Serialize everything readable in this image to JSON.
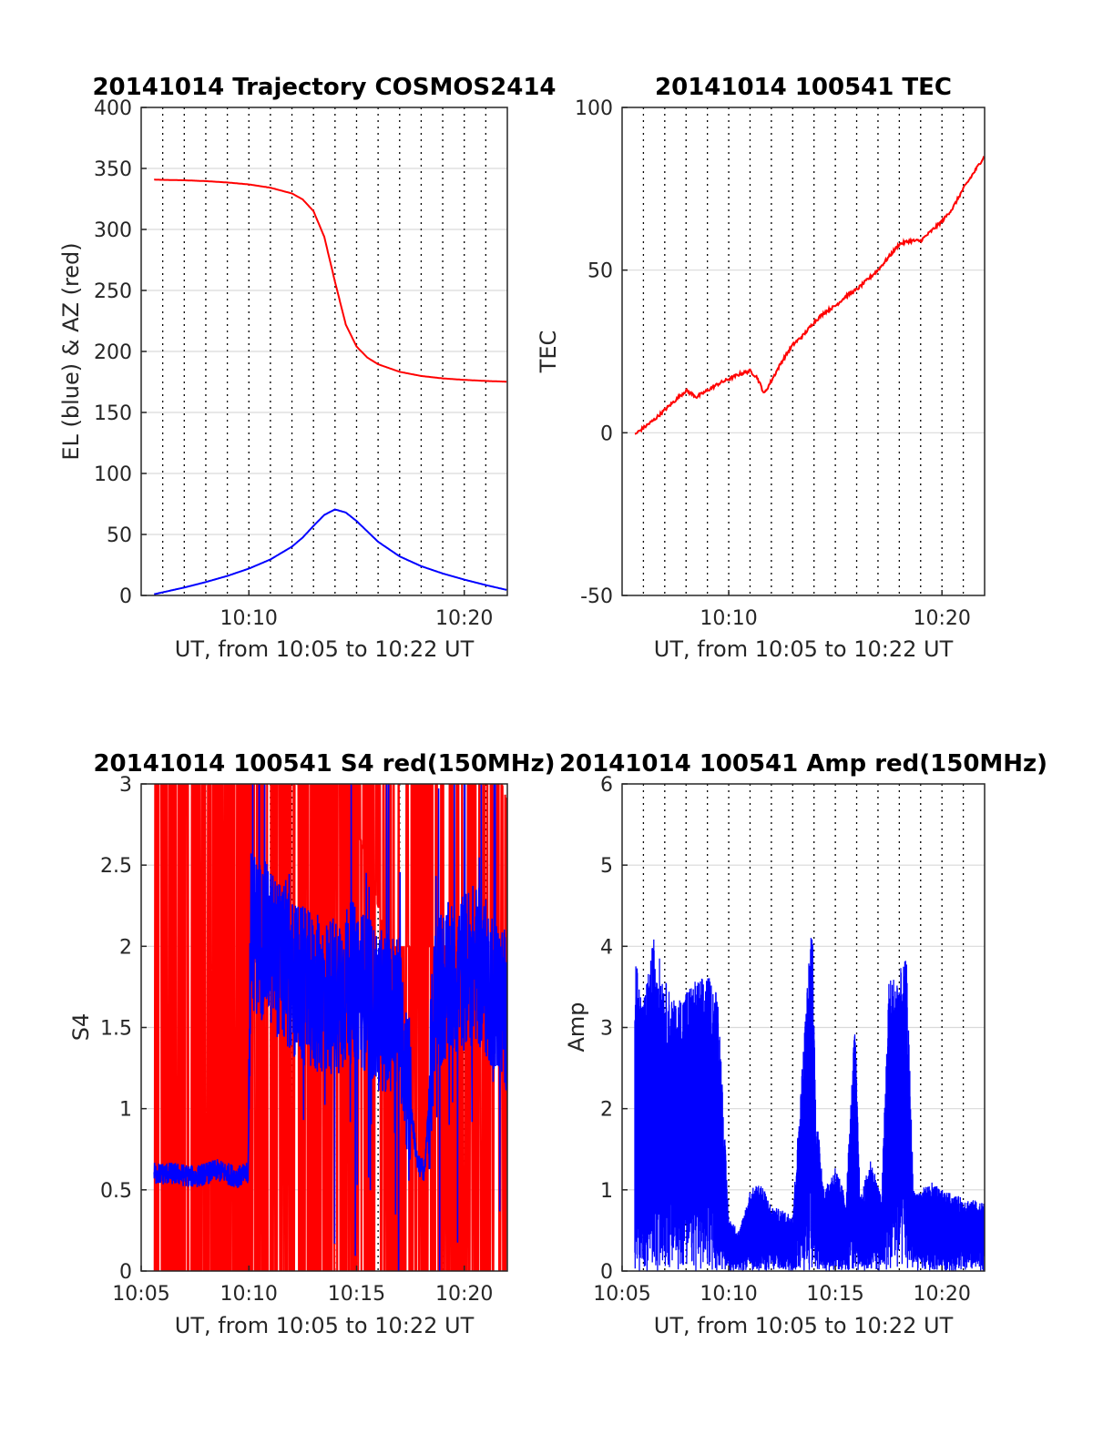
{
  "figure": {
    "background": "#ffffff"
  },
  "colors": {
    "red": "#ff0000",
    "blue": "#0000ff",
    "grid": "#d9d9d9",
    "vgrid": "#000000",
    "axis": "#262626"
  },
  "chart_data": [
    {
      "type": "line",
      "title": "20141014 Trajectory COSMOS2414",
      "xlabel": "UT, from 10:05 to 10:22 UT",
      "ylabel": "EL (blue) & AZ (red)",
      "xlim": [
        "10:05",
        "10:22"
      ],
      "ylim": [
        0,
        400
      ],
      "yticks": [
        0,
        50,
        100,
        150,
        200,
        250,
        300,
        350,
        400
      ],
      "xticks": [
        "10:10",
        "10:20"
      ],
      "grid": true,
      "series": [
        {
          "color": "#ff0000",
          "x": [
            "10:05:36",
            "10:07:00",
            "10:08:00",
            "10:09:00",
            "10:10:00",
            "10:11:00",
            "10:12:00",
            "10:12:30",
            "10:13:00",
            "10:13:30",
            "10:14:00",
            "10:14:30",
            "10:15:00",
            "10:15:30",
            "10:16:00",
            "10:17:00",
            "10:18:00",
            "10:19:00",
            "10:20:00",
            "10:21:00",
            "10:21:59"
          ],
          "y": [
            340.8,
            340.3,
            339.6,
            338.5,
            336.9,
            334.2,
            329.5,
            324.6,
            315,
            294,
            257,
            222,
            204,
            195,
            189.5,
            183.3,
            179.9,
            177.9,
            176.7,
            175.8,
            175.2
          ]
        },
        {
          "color": "#0000ff",
          "x": [
            "10:05:36",
            "10:07:00",
            "10:08:00",
            "10:09:00",
            "10:10:00",
            "10:11:00",
            "10:12:00",
            "10:12:30",
            "10:13:00",
            "10:13:30",
            "10:14:00",
            "10:14:30",
            "10:15:00",
            "10:15:30",
            "10:16:00",
            "10:17:00",
            "10:18:00",
            "10:19:00",
            "10:20:00",
            "10:21:00",
            "10:21:59"
          ],
          "y": [
            1,
            6.5,
            11,
            16,
            22,
            29.5,
            40,
            47.5,
            57,
            66,
            70.5,
            68,
            61,
            52.5,
            44,
            32,
            24,
            18,
            13,
            8.5,
            4.5
          ]
        }
      ]
    },
    {
      "type": "line",
      "title": "20141014 100541 TEC",
      "xlabel": "UT, from 10:05 to 10:22 UT",
      "ylabel": "TEC",
      "xlim": [
        "10:05",
        "10:22"
      ],
      "ylim": [
        -50,
        100
      ],
      "yticks": [
        -50,
        0,
        50,
        100
      ],
      "xticks": [
        "10:10",
        "10:20"
      ],
      "grid": true,
      "series": [
        {
          "color": "#ff0000",
          "x": [
            "10:05:36",
            "10:06:30",
            "10:07:00",
            "10:07:30",
            "10:08:00",
            "10:08:30",
            "10:09:00",
            "10:09:30",
            "10:10:00",
            "10:10:30",
            "10:11:00",
            "10:11:20",
            "10:11:40",
            "10:12:00",
            "10:12:30",
            "10:13:00",
            "10:13:30",
            "10:14:00",
            "10:14:30",
            "10:15:00",
            "10:15:30",
            "10:16:00",
            "10:16:30",
            "10:17:00",
            "10:17:30",
            "10:18:00",
            "10:18:30",
            "10:19:00",
            "10:19:30",
            "10:20:00",
            "10:20:30",
            "10:21:00",
            "10:21:30",
            "10:21:59"
          ],
          "y": [
            -0.5,
            4,
            7,
            10,
            13,
            11,
            13,
            15,
            16.5,
            18,
            19,
            17,
            12,
            16,
            22,
            27,
            30,
            34,
            37,
            39,
            42,
            44,
            47,
            50,
            54,
            58,
            59,
            59,
            62,
            65,
            69,
            75,
            80,
            85
          ]
        }
      ]
    },
    {
      "type": "line",
      "title": "20141014 100541 S4 red(150MHz)",
      "xlabel": "UT, from 10:05 to 10:22 UT",
      "ylabel": "S4",
      "xlim": [
        "10:05",
        "10:22"
      ],
      "ylim": [
        0,
        3
      ],
      "yticks": [
        0,
        0.5,
        1,
        1.5,
        2,
        2.5,
        3
      ],
      "xticks": [
        "10:05",
        "10:10",
        "10:15",
        "10:20"
      ],
      "grid": true,
      "series": [
        {
          "color": "#ff0000",
          "x": [
            "10:05:36",
            "10:10:00",
            "10:12:30",
            "10:13:30",
            "10:14:30",
            "10:15:30",
            "10:16:30",
            "10:17:30",
            "10:18:30",
            "10:19:30",
            "10:20:30",
            "10:21:59"
          ],
          "y": [
            3,
            3,
            3,
            3,
            3,
            2.5,
            2,
            2,
            2,
            2,
            2,
            1.4
          ]
        },
        {
          "color": "#0000ff",
          "x": [
            "10:05:36",
            "10:06:30",
            "10:07:30",
            "10:08:30",
            "10:09:30",
            "10:09:58",
            "10:10:05",
            "10:11:00",
            "10:12:00",
            "10:13:00",
            "10:14:00",
            "10:15:00",
            "10:16:00",
            "10:17:00",
            "10:17:50",
            "10:18:10",
            "10:18:40",
            "10:19:30",
            "10:20:30",
            "10:21:59"
          ],
          "y": [
            0.6,
            0.6,
            0.58,
            0.62,
            0.58,
            0.6,
            2.1,
            2,
            1.8,
            1.7,
            1.7,
            1.8,
            1.6,
            1.6,
            0.65,
            0.62,
            1.7,
            1.8,
            1.9,
            1.6
          ]
        }
      ]
    },
    {
      "type": "line",
      "title": "20141014 100541 Amp red(150MHz)",
      "xlabel": "UT, from 10:05 to 10:22 UT",
      "ylabel": "Amp",
      "xlim": [
        "10:05",
        "10:22"
      ],
      "ylim": [
        0,
        6
      ],
      "yticks": [
        0,
        1,
        2,
        3,
        4,
        5,
        6
      ],
      "xticks": [
        "10:05",
        "10:10",
        "10:15",
        "10:20"
      ],
      "grid": true,
      "series": [
        {
          "color": "#0000ff",
          "x": [
            "10:05:36",
            "10:06:00",
            "10:06:30",
            "10:07:00",
            "10:07:30",
            "10:08:00",
            "10:08:30",
            "10:09:00",
            "10:09:30",
            "10:10:00",
            "10:10:30",
            "10:11:00",
            "10:11:30",
            "10:12:00",
            "10:13:00",
            "10:13:55",
            "10:14:05",
            "10:14:30",
            "10:15:00",
            "10:15:30",
            "10:15:55",
            "10:16:10",
            "10:16:40",
            "10:17:10",
            "10:17:30",
            "10:18:00",
            "10:18:20",
            "10:18:40",
            "10:19:00",
            "10:19:30",
            "10:20:00",
            "10:21:00",
            "10:21:59"
          ],
          "y": [
            3.9,
            3.3,
            4.15,
            3.6,
            3.3,
            3.5,
            3.6,
            3.65,
            3.45,
            0.65,
            0.5,
            1.0,
            1.1,
            0.8,
            0.7,
            4.5,
            2.0,
            1.0,
            1.3,
            0.9,
            3.1,
            0.9,
            1.4,
            0.9,
            3.6,
            3.7,
            3.85,
            1.0,
            1.0,
            1.1,
            1.0,
            0.9,
            0.85
          ]
        }
      ]
    }
  ]
}
